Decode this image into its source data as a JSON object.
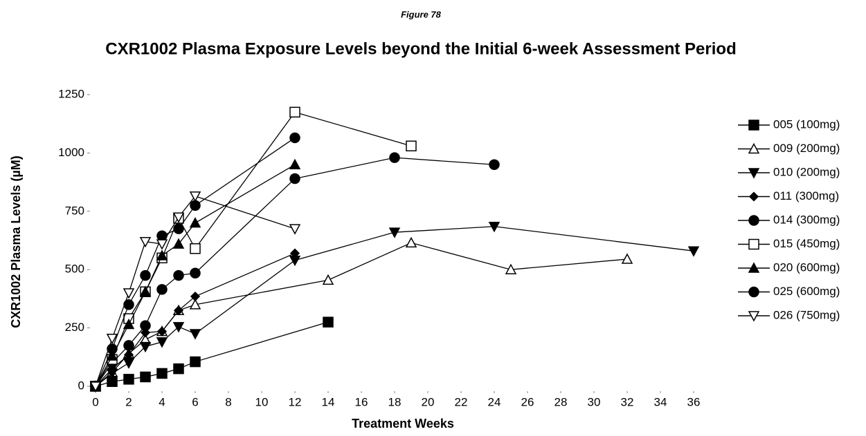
{
  "chart_data": {
    "type": "line",
    "figure_label": "Figure 78",
    "title": "CXR1002 Plasma Exposure Levels beyond the Initial 6-week Assessment Period",
    "x_label": "Treatment Weeks",
    "y_label": "CXR1002 Plasma Levels (µM)",
    "xlim": [
      0,
      36
    ],
    "xticks": [
      0,
      2,
      4,
      6,
      8,
      10,
      12,
      14,
      16,
      18,
      20,
      22,
      24,
      26,
      28,
      30,
      32,
      34,
      36
    ],
    "ylim": [
      0,
      1250
    ],
    "yticks": [
      0,
      250,
      500,
      750,
      1000,
      1250
    ],
    "grid": false,
    "legend": "right",
    "series": [
      {
        "name": "005 (100mg)",
        "color": "#000000",
        "marker": "square",
        "x": [
          0,
          1,
          2,
          3,
          4,
          5,
          6,
          14
        ],
        "values": [
          0,
          20,
          30,
          40,
          55,
          75,
          105,
          275
        ]
      },
      {
        "name": "009 (200mg)",
        "color": "#000000",
        "marker": "triangle-open",
        "x": [
          0,
          1,
          2,
          3,
          4,
          5,
          6,
          14,
          19,
          25,
          32
        ],
        "values": [
          0,
          60,
          140,
          200,
          235,
          325,
          350,
          455,
          615,
          500,
          545
        ]
      },
      {
        "name": "010 (200mg)",
        "color": "#000000",
        "marker": "triangle-down",
        "x": [
          0,
          1,
          2,
          3,
          4,
          5,
          6,
          12,
          18,
          24,
          36
        ],
        "values": [
          0,
          55,
          100,
          170,
          190,
          255,
          225,
          540,
          660,
          685,
          580
        ]
      },
      {
        "name": "011 (300mg)",
        "color": "#000000",
        "marker": "diamond",
        "x": [
          0,
          1,
          2,
          3,
          4,
          5,
          6,
          12
        ],
        "values": [
          0,
          75,
          135,
          230,
          235,
          325,
          385,
          570
        ]
      },
      {
        "name": "014 (300mg)",
        "color": "#000000",
        "marker": "circle",
        "x": [
          0,
          1,
          2,
          3,
          4,
          5,
          6,
          12,
          18,
          24
        ],
        "values": [
          0,
          100,
          175,
          260,
          415,
          475,
          485,
          890,
          980,
          950
        ]
      },
      {
        "name": "015 (450mg)",
        "color": "#000000",
        "marker": "square-open",
        "x": [
          0,
          1,
          2,
          3,
          4,
          5,
          6,
          12,
          19
        ],
        "values": [
          0,
          115,
          290,
          405,
          550,
          720,
          590,
          1175,
          1030
        ]
      },
      {
        "name": "020 (600mg)",
        "color": "#000000",
        "marker": "triangle",
        "x": [
          0,
          1,
          2,
          3,
          4,
          5,
          6,
          12
        ],
        "values": [
          0,
          130,
          265,
          405,
          560,
          610,
          700,
          950
        ]
      },
      {
        "name": "025 (600mg)",
        "color": "#000000",
        "marker": "circle",
        "x": [
          0,
          1,
          2,
          3,
          4,
          5,
          6,
          12
        ],
        "values": [
          0,
          160,
          350,
          475,
          645,
          675,
          775,
          1065
        ]
      },
      {
        "name": "026 (750mg)",
        "color": "#000000",
        "marker": "triangle-down-open",
        "x": [
          0,
          1,
          2,
          3,
          4,
          5,
          6,
          12
        ],
        "values": [
          0,
          205,
          400,
          620,
          610,
          725,
          815,
          675
        ]
      }
    ]
  }
}
